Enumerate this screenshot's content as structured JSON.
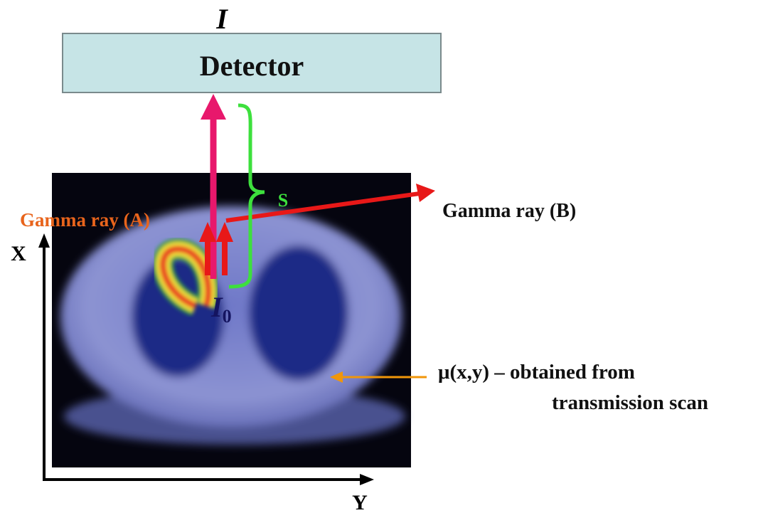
{
  "detector": {
    "intensity_label": "I",
    "label": "Detector"
  },
  "path_label": "S",
  "gamma_ray_a": "Gamma ray (A)",
  "gamma_ray_b": "Gamma ray (B)",
  "source_intensity": {
    "symbol": "I",
    "subscript": "0"
  },
  "axes": {
    "x": "X",
    "y": "Y"
  },
  "attenuation": {
    "line1": "μ(x,y) – obtained from",
    "line2": "transmission scan"
  }
}
